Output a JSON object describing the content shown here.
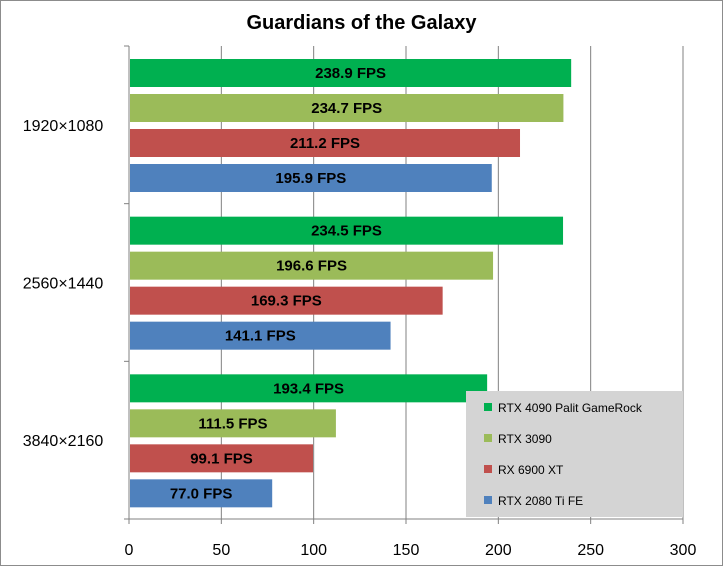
{
  "chart_data": {
    "type": "bar",
    "orientation": "horizontal",
    "title": "Guardians of the Galaxy",
    "categories": [
      "1920×1080",
      "2560×1440",
      "3840×2160"
    ],
    "series": [
      {
        "name": "RTX 4090 Palit GameRock",
        "color": "#00b050",
        "values": [
          238.9,
          234.5,
          193.4
        ],
        "labels": [
          "238.9 FPS",
          "234.5 FPS",
          "193.4 FPS"
        ]
      },
      {
        "name": "RTX 3090",
        "color": "#9bbb59",
        "values": [
          234.7,
          196.6,
          111.5
        ],
        "labels": [
          "234.7 FPS",
          "196.6 FPS",
          "111.5 FPS"
        ]
      },
      {
        "name": "RX 6900 XT",
        "color": "#c0504d",
        "values": [
          211.2,
          169.3,
          99.1
        ],
        "labels": [
          "211.2 FPS",
          "169.3 FPS",
          "99.1 FPS"
        ]
      },
      {
        "name": "RTX 2080 Ti FE",
        "color": "#4f81bd",
        "values": [
          195.9,
          141.1,
          77.0
        ],
        "labels": [
          "195.9 FPS",
          "141.1 FPS",
          "77.0 FPS"
        ]
      }
    ],
    "xlim": [
      0,
      300
    ],
    "xticks": [
      "0",
      "50",
      "100",
      "150",
      "200",
      "250",
      "300"
    ],
    "grid": true,
    "legend": "bottom-right"
  }
}
